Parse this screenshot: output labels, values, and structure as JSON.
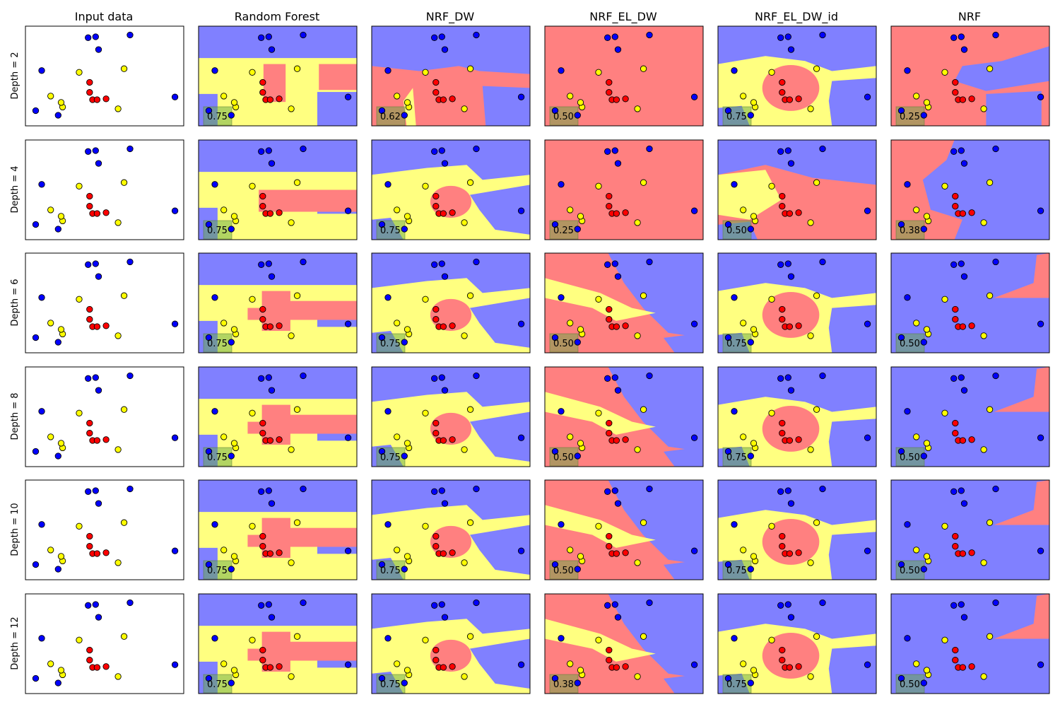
{
  "colors": {
    "blue_region": "#8080ff",
    "red_region": "#ff8080",
    "yellow_region": "#ffff80",
    "blue_point": "#0000ff",
    "red_point": "#ff0000",
    "yellow_point": "#ffff00",
    "score_box": "#66aa44"
  },
  "chart_data": {
    "type": "scatter",
    "grid_layout": "6 rows x 6 columns of small decision-boundary panels",
    "columns": [
      "Input data",
      "Random Forest",
      "NRF_DW",
      "NRF_EL_DW",
      "NRF_EL_DW_id",
      "NRF"
    ],
    "rows": [
      "Depth = 2",
      "Depth = 4",
      "Depth = 6",
      "Depth = 8",
      "Depth = 10",
      "Depth = 12"
    ],
    "xlim": [
      0,
      1
    ],
    "ylim": [
      0,
      1
    ],
    "axis_ticks": "none",
    "points": [
      {
        "x": 0.39,
        "y": 0.92,
        "class": "blue"
      },
      {
        "x": 0.44,
        "y": 0.93,
        "class": "blue"
      },
      {
        "x": 0.46,
        "y": 0.79,
        "class": "blue"
      },
      {
        "x": 0.67,
        "y": 0.95,
        "class": "blue"
      },
      {
        "x": 0.08,
        "y": 0.56,
        "class": "blue"
      },
      {
        "x": 0.04,
        "y": 0.12,
        "class": "blue"
      },
      {
        "x": 0.19,
        "y": 0.07,
        "class": "blue"
      },
      {
        "x": 0.97,
        "y": 0.27,
        "class": "blue"
      },
      {
        "x": 0.33,
        "y": 0.54,
        "class": "yellow"
      },
      {
        "x": 0.63,
        "y": 0.58,
        "class": "yellow"
      },
      {
        "x": 0.14,
        "y": 0.28,
        "class": "yellow"
      },
      {
        "x": 0.22,
        "y": 0.16,
        "class": "yellow"
      },
      {
        "x": 0.21,
        "y": 0.21,
        "class": "yellow"
      },
      {
        "x": 0.59,
        "y": 0.14,
        "class": "yellow"
      },
      {
        "x": 0.4,
        "y": 0.43,
        "class": "red"
      },
      {
        "x": 0.4,
        "y": 0.32,
        "class": "red"
      },
      {
        "x": 0.42,
        "y": 0.24,
        "class": "red"
      },
      {
        "x": 0.45,
        "y": 0.24,
        "class": "red"
      },
      {
        "x": 0.51,
        "y": 0.25,
        "class": "red"
      }
    ],
    "scores": [
      [
        null,
        "0.75",
        "0.62",
        "0.50",
        "0.75",
        "0.25"
      ],
      [
        null,
        "0.75",
        "0.75",
        "0.25",
        "0.50",
        "0.38"
      ],
      [
        null,
        "0.75",
        "0.75",
        "0.50",
        "0.75",
        "0.50"
      ],
      [
        null,
        "0.75",
        "0.75",
        "0.50",
        "0.75",
        "0.50"
      ],
      [
        null,
        "0.75",
        "0.75",
        "0.50",
        "0.75",
        "0.50"
      ],
      [
        null,
        "0.75",
        "0.75",
        "0.38",
        "0.75",
        "0.50"
      ]
    ],
    "dominant_region": [
      [
        null,
        "yellow",
        "red",
        "red",
        "yellow",
        "red"
      ],
      [
        null,
        "yellow",
        "yellow",
        "red",
        "red",
        "blue"
      ],
      [
        null,
        "yellow",
        "yellow",
        "red",
        "yellow",
        "blue"
      ],
      [
        null,
        "yellow",
        "yellow",
        "red",
        "yellow",
        "blue"
      ],
      [
        null,
        "yellow",
        "yellow",
        "red",
        "yellow",
        "blue"
      ],
      [
        null,
        "yellow",
        "yellow",
        "red",
        "yellow",
        "blue"
      ]
    ]
  }
}
